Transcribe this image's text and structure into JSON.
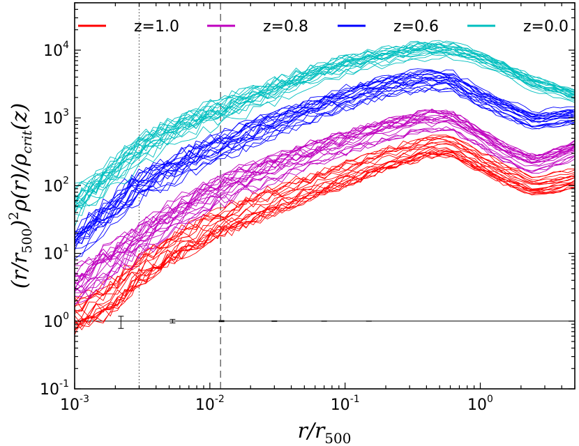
{
  "chart_data": {
    "type": "line",
    "title": "",
    "xlabel": "r/r500",
    "ylabel": "(r/r500)^2 ρ(r)/ρcrit(z)",
    "xscale": "log",
    "yscale": "log",
    "xlim": [
      0.001,
      5.0
    ],
    "ylim": [
      0.1,
      50000
    ],
    "x_ticks": [
      {
        "value": 0.001,
        "base": "10",
        "exp": "-3"
      },
      {
        "value": 0.01,
        "base": "10",
        "exp": "-2"
      },
      {
        "value": 0.1,
        "base": "10",
        "exp": "-1"
      },
      {
        "value": 1.0,
        "base": "10",
        "exp": "0"
      }
    ],
    "y_ticks": [
      {
        "value": 0.1,
        "base": "10",
        "exp": "-1"
      },
      {
        "value": 1,
        "base": "10",
        "exp": "0"
      },
      {
        "value": 10,
        "base": "10",
        "exp": "1"
      },
      {
        "value": 100,
        "base": "10",
        "exp": "2"
      },
      {
        "value": 1000,
        "base": "10",
        "exp": "3"
      },
      {
        "value": 10000,
        "base": "10",
        "exp": "4"
      }
    ],
    "legend": {
      "placement": "top",
      "entries": [
        {
          "label": "z=1.0",
          "color": "#ff0000"
        },
        {
          "label": "z=0.8",
          "color": "#bf00bf"
        },
        {
          "label": "z=0.6",
          "color": "#0000ff"
        },
        {
          "label": "z=0.0",
          "color": "#00bfbf"
        }
      ]
    },
    "lines_per_series": 20,
    "series": [
      {
        "name": "z=1.0",
        "color": "#ff0000",
        "x": [
          0.001,
          0.002,
          0.003,
          0.005,
          0.01,
          0.02,
          0.05,
          0.1,
          0.2,
          0.4,
          0.6,
          1.0,
          1.5,
          2.5,
          3.5,
          5.0
        ],
        "y": [
          1.2,
          2.5,
          6,
          12,
          25,
          45,
          90,
          150,
          250,
          380,
          400,
          230,
          150,
          100,
          110,
          130
        ]
      },
      {
        "name": "z=0.8",
        "color": "#bf00bf",
        "x": [
          0.001,
          0.002,
          0.003,
          0.005,
          0.01,
          0.02,
          0.05,
          0.1,
          0.2,
          0.4,
          0.6,
          1.0,
          1.5,
          2.5,
          3.5,
          5.0
        ],
        "y": [
          3.0,
          8,
          15,
          30,
          70,
          130,
          260,
          420,
          650,
          900,
          900,
          500,
          300,
          200,
          250,
          330
        ]
      },
      {
        "name": "z=0.6",
        "color": "#0000ff",
        "x": [
          0.001,
          0.002,
          0.003,
          0.005,
          0.01,
          0.02,
          0.05,
          0.1,
          0.2,
          0.4,
          0.6,
          1.0,
          1.5,
          2.5,
          3.5,
          5.0
        ],
        "y": [
          15,
          50,
          100,
          170,
          330,
          600,
          1200,
          2000,
          3000,
          3700,
          3600,
          2000,
          1400,
          900,
          1000,
          1100
        ]
      },
      {
        "name": "z=0.0",
        "color": "#00bfbf",
        "x": [
          0.001,
          0.002,
          0.003,
          0.005,
          0.01,
          0.02,
          0.05,
          0.1,
          0.2,
          0.4,
          0.6,
          1.0,
          1.5,
          2.5,
          3.5,
          5.0
        ],
        "y": [
          45,
          150,
          300,
          550,
          1000,
          1700,
          3500,
          5500,
          7500,
          9500,
          9500,
          7000,
          5000,
          3000,
          2500,
          2000
        ]
      }
    ],
    "reference_lines": [
      {
        "orientation": "horizontal",
        "value": 1.0,
        "style": "solid"
      },
      {
        "orientation": "vertical",
        "value": 0.003,
        "style": "dotted"
      },
      {
        "orientation": "vertical",
        "value": 0.012,
        "style": "dashed"
      }
    ],
    "error_bars": [
      {
        "x": 0.0022,
        "y": 1.0,
        "low": 0.78,
        "high": 1.18
      },
      {
        "x": 0.0053,
        "y": 1.0,
        "low": 0.94,
        "high": 1.06
      },
      {
        "x": 0.0122,
        "y": 1.0,
        "low": 0.98,
        "high": 1.02
      },
      {
        "x": 0.03,
        "y": 1.0,
        "low": 0.99,
        "high": 1.01
      },
      {
        "x": 0.07,
        "y": 1.0,
        "low": 0.995,
        "high": 1.005
      },
      {
        "x": 0.15,
        "y": 1.0,
        "low": 0.997,
        "high": 1.003
      }
    ]
  }
}
